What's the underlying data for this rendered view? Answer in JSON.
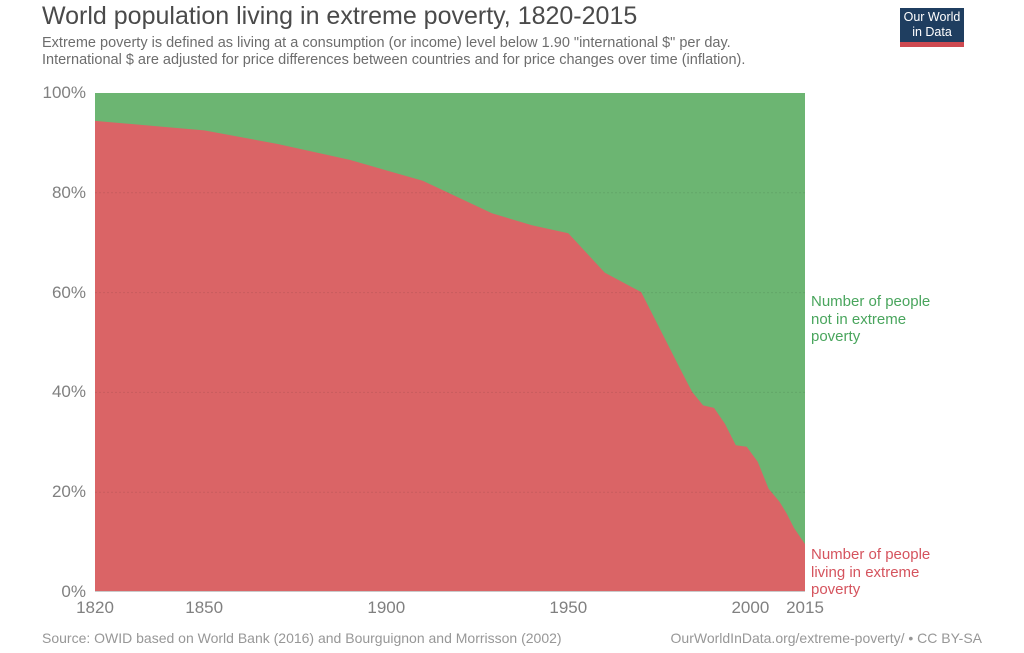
{
  "header": {
    "title": "World population living in extreme poverty, 1820-2015",
    "subtitle_line1": "Extreme poverty is defined as living at a consumption (or income) level below 1.90 \"international $\" per day.",
    "subtitle_line2": "International $ are adjusted for price differences between countries and for price changes over time (inflation).",
    "logo": {
      "line1": "Our World",
      "line2": "in Data",
      "bg_color": "#1f3e60",
      "stripe_color": "#ce4950",
      "text_color": "#ffffff"
    }
  },
  "chart_data": {
    "type": "area",
    "stacked": true,
    "stack_total": 100,
    "title": "World population living in extreme poverty, 1820-2015",
    "xlabel": "",
    "ylabel": "",
    "xlim": [
      1820,
      2015
    ],
    "ylim": [
      0,
      100
    ],
    "x_ticks": [
      1820,
      1850,
      1900,
      1950,
      2000,
      2015
    ],
    "y_ticks": [
      0,
      20,
      40,
      60,
      80,
      100
    ],
    "y_tick_suffix": "%",
    "grid": "dashed-horizontal",
    "gridline_color": "rgba(0,0,0,0.08)",
    "baseline_color": "#c9c9c9",
    "x": [
      1820,
      1850,
      1870,
      1890,
      1910,
      1929,
      1940,
      1950,
      1960,
      1970,
      1981,
      1984,
      1987,
      1990,
      1993,
      1996,
      1999,
      2002,
      2005,
      2008,
      2010,
      2012,
      2015
    ],
    "series": [
      {
        "name": "Number of people living in extreme poverty",
        "color": "#da6466",
        "values": [
          94.4,
          92.5,
          89.8,
          86.6,
          82.4,
          75.9,
          73.5,
          71.9,
          64.0,
          60.1,
          44.3,
          40.1,
          37.4,
          36.9,
          33.7,
          29.4,
          29.1,
          26.1,
          20.7,
          18.1,
          15.7,
          12.8,
          9.6
        ]
      },
      {
        "name": "Number of people not in extreme poverty",
        "color": "#6cb572",
        "values": [
          5.6,
          7.5,
          10.2,
          13.4,
          17.6,
          24.1,
          26.5,
          28.1,
          36.0,
          39.9,
          55.7,
          59.9,
          62.6,
          63.1,
          66.3,
          70.6,
          70.9,
          73.9,
          79.3,
          81.9,
          84.3,
          87.2,
          90.4
        ]
      }
    ],
    "annotations": [
      {
        "text": [
          "Number of people",
          "not in extreme",
          "poverty"
        ],
        "color": "#49a55d",
        "position": "right-upper"
      },
      {
        "text": [
          "Number of people",
          "living in extreme",
          "poverty"
        ],
        "color": "#d5545e",
        "position": "right-lower"
      }
    ],
    "legend": "none"
  },
  "footer": {
    "source": "Source: OWID based on World Bank (2016) and Bourguignon and Morrisson (2002)",
    "license": "OurWorldInData.org/extreme-poverty/ • CC BY-SA"
  }
}
